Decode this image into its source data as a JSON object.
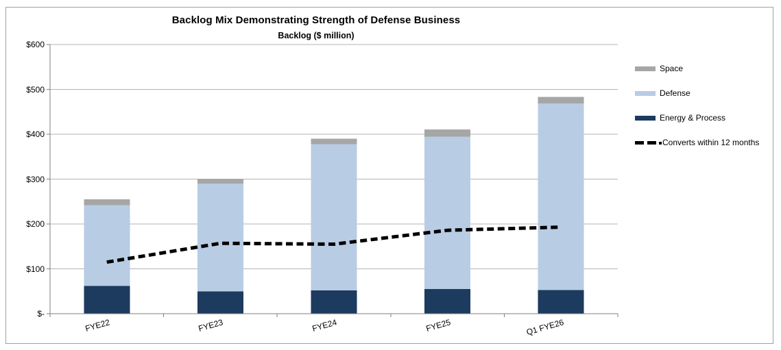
{
  "figure": {
    "title": "Backlog Mix Demonstrating Strength of Defense Business",
    "subtitle": "Backlog ($ million)"
  },
  "legend": {
    "position": "right",
    "items": [
      {
        "label": "Space",
        "type": "swatch",
        "color": "#a6a6a6"
      },
      {
        "label": "Defense",
        "type": "swatch",
        "color": "#b8cce4"
      },
      {
        "label": "Energy & Process",
        "type": "swatch",
        "color": "#1d3a5f"
      },
      {
        "label": "Converts within 12 months",
        "type": "dashed-line",
        "color": "#000000"
      }
    ]
  },
  "chart_data": {
    "type": "bar",
    "subtype": "stacked-bar-with-line-overlay",
    "title": "Backlog Mix Demonstrating Strength of Defense Business",
    "subtitle": "Backlog ($ million)",
    "categories": [
      "FYE22",
      "FYE23",
      "FYE24",
      "FYE25",
      "Q1 FYE26"
    ],
    "series": [
      {
        "name": "Energy & Process",
        "type": "bar",
        "color": "#1d3a5f",
        "values": [
          62,
          50,
          52,
          55,
          53
        ]
      },
      {
        "name": "Defense",
        "type": "bar",
        "color": "#b8cce4",
        "values": [
          180,
          240,
          326,
          340,
          416
        ]
      },
      {
        "name": "Space",
        "type": "bar",
        "color": "#a6a6a6",
        "values": [
          13,
          11,
          12,
          16,
          14
        ]
      },
      {
        "name": "Converts within 12 months",
        "type": "line",
        "dashed": true,
        "color": "#000000",
        "values": [
          115,
          157,
          155,
          186,
          193
        ]
      }
    ],
    "stack_totals": [
      255,
      301,
      390,
      411,
      483
    ],
    "xlabel": "",
    "ylabel": "",
    "ylim": [
      0,
      600
    ],
    "y_tick_interval": 100,
    "y_tick_labels": [
      "$-",
      "$100",
      "$200",
      "$300",
      "$400",
      "$500",
      "$600"
    ],
    "grid": true,
    "legend_position": "right",
    "colors": {
      "gridline": "#b3b3b3",
      "axis": "#7f7f7f",
      "figure_border": "#a0a0a0"
    }
  }
}
